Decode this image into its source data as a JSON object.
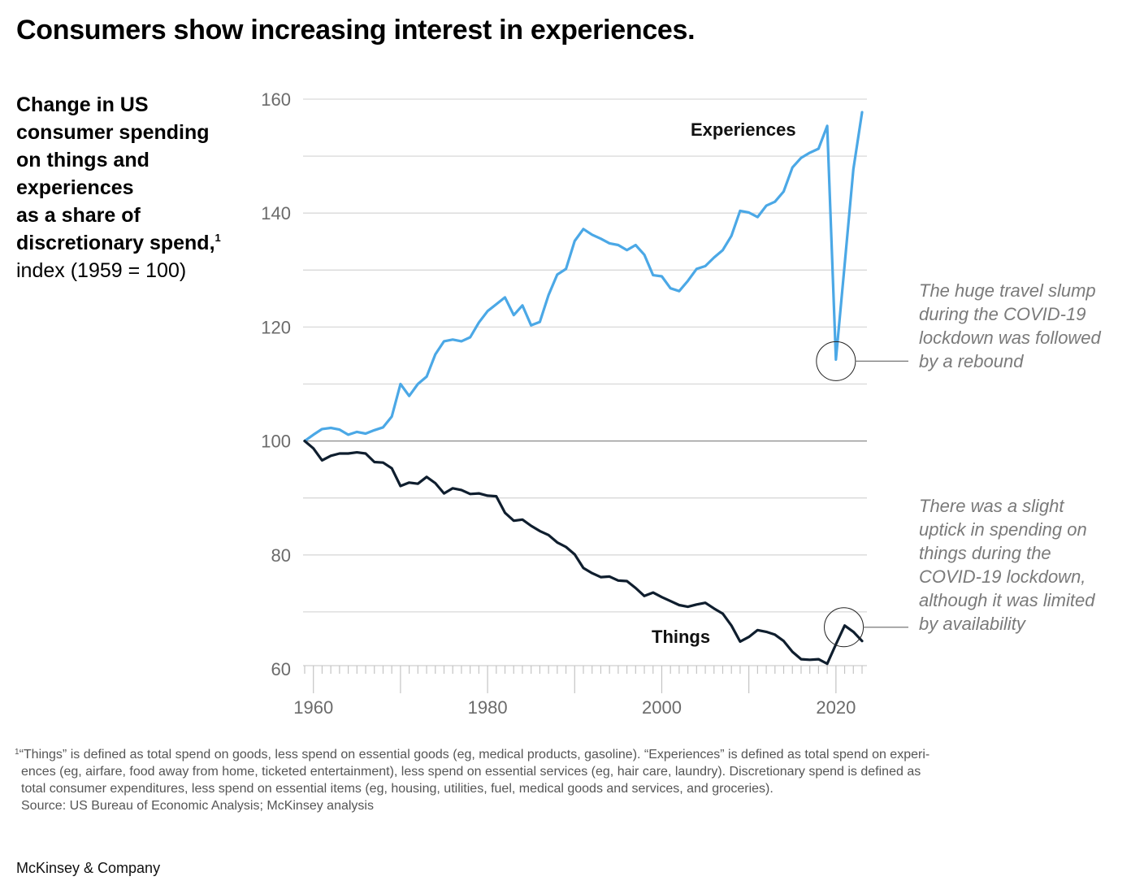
{
  "title": "Consumers show increasing interest in experiences.",
  "subtitle": {
    "bold_lines": [
      "Change in US",
      "consumer spending",
      "on things and",
      "experiences",
      "as a share of",
      "discretionary spend,"
    ],
    "footnote_marker": "1",
    "normal_line": "index (1959 = 100)"
  },
  "annotations": {
    "experiences_note": [
      "The huge travel slump",
      "during the COVID-19",
      "lockdown was followed",
      "by a rebound"
    ],
    "things_note": [
      "There was a slight",
      "uptick in spending on",
      "things during the",
      "COVID-19 lockdown,",
      "although it was limited",
      "by availability"
    ]
  },
  "footnote": {
    "marker": "1",
    "lines": [
      "“Things” is defined as total spend on goods, less spend on essential goods (eg, medical products, gasoline). “Experiences” is defined as total spend on experi-",
      "ences (eg, airfare, food away from home, ticketed entertainment), less spend on essential services (eg, hair care, laundry). Discretionary spend is defined as",
      "total consumer expenditures, less spend on essential items (eg, housing, utilities, fuel, medical goods and services, and groceries)."
    ],
    "source": "Source: US Bureau of Economic Analysis; McKinsey analysis"
  },
  "brand": "McKinsey & Company",
  "colors": {
    "experiences": "#4ba8e6",
    "things": "#0f1e2e",
    "grid": "#d9d9d9",
    "baseline": "#8a8a8a",
    "tick_text": "#6b6b6b"
  },
  "chart_data": {
    "type": "line",
    "title": "Consumers show increasing interest in experiences.",
    "subtitle": "Change in US consumer spending on things and experiences as a share of discretionary spend, index (1959 = 100)",
    "xlabel": "",
    "ylabel": "index (1959 = 100)",
    "xlim": [
      1959,
      2023
    ],
    "ylim": [
      60,
      160
    ],
    "yticks": [
      60,
      80,
      100,
      120,
      140,
      160
    ],
    "ytick_labels": [
      "60",
      "80",
      "100",
      "120",
      "140",
      "160"
    ],
    "gridlines_y": [
      70,
      80,
      90,
      100,
      110,
      120,
      130,
      140,
      150,
      160
    ],
    "xticks_major": [
      1960,
      1970,
      1980,
      1990,
      2000,
      2010,
      2020
    ],
    "xtick_labels": {
      "1960": "1960",
      "1980": "1980",
      "2000": "2000",
      "2020": "2020"
    },
    "grid": true,
    "legend": "inline labels",
    "x": [
      1959,
      1960,
      1961,
      1962,
      1963,
      1964,
      1965,
      1966,
      1967,
      1968,
      1969,
      1970,
      1971,
      1972,
      1973,
      1974,
      1975,
      1976,
      1977,
      1978,
      1979,
      1980,
      1981,
      1982,
      1983,
      1984,
      1985,
      1986,
      1987,
      1988,
      1989,
      1990,
      1991,
      1992,
      1993,
      1994,
      1995,
      1996,
      1997,
      1998,
      1999,
      2000,
      2001,
      2002,
      2003,
      2004,
      2005,
      2006,
      2007,
      2008,
      2009,
      2010,
      2011,
      2012,
      2013,
      2014,
      2015,
      2016,
      2017,
      2018,
      2019,
      2020,
      2021,
      2022,
      2023
    ],
    "series": [
      {
        "name": "Experiences",
        "label": "Experiences",
        "values": [
          100,
          101.1,
          102.1,
          102.3,
          102.0,
          101.1,
          101.6,
          101.3,
          101.9,
          102.4,
          104.3,
          110.0,
          107.9,
          110.0,
          111.3,
          115.2,
          117.5,
          117.8,
          117.5,
          118.2,
          120.8,
          122.8,
          124.0,
          125.2,
          122.1,
          123.8,
          120.3,
          120.9,
          125.6,
          129.2,
          130.2,
          135.1,
          137.2,
          136.2,
          135.5,
          134.7,
          134.4,
          133.5,
          134.4,
          132.7,
          129.1,
          128.9,
          126.8,
          126.3,
          128.1,
          130.2,
          130.7,
          132.2,
          133.5,
          136.0,
          140.4,
          140.1,
          139.3,
          141.3,
          142.0,
          143.8,
          148.0,
          149.7,
          150.6,
          151.3,
          155.3,
          114.3,
          131.0,
          147.7,
          157.7
        ]
      },
      {
        "name": "Things",
        "label": "Things",
        "values": [
          100,
          98.7,
          96.6,
          97.4,
          97.8,
          97.8,
          98.0,
          97.8,
          96.3,
          96.2,
          95.2,
          92.1,
          92.7,
          92.5,
          93.7,
          92.6,
          90.8,
          91.7,
          91.4,
          90.7,
          90.8,
          90.4,
          90.3,
          87.4,
          86.0,
          86.2,
          85.1,
          84.2,
          83.5,
          82.2,
          81.4,
          80.1,
          77.7,
          76.8,
          76.1,
          76.2,
          75.5,
          75.4,
          74.2,
          72.8,
          73.4,
          72.6,
          71.9,
          71.2,
          70.9,
          71.3,
          71.6,
          70.6,
          69.7,
          67.6,
          64.8,
          65.6,
          66.8,
          66.5,
          66.0,
          64.9,
          63.0,
          61.7,
          61.6,
          61.7,
          60.9,
          64.3,
          67.6,
          66.5,
          64.9
        ]
      }
    ],
    "annotations": [
      {
        "series": "Experiences",
        "x": 2020,
        "text": "The huge travel slump during the COVID-19 lockdown was followed by a rebound"
      },
      {
        "series": "Things",
        "x": 2021,
        "text": "There was a slight uptick in spending on things during the COVID-19 lockdown, although it was limited by availability"
      }
    ]
  }
}
